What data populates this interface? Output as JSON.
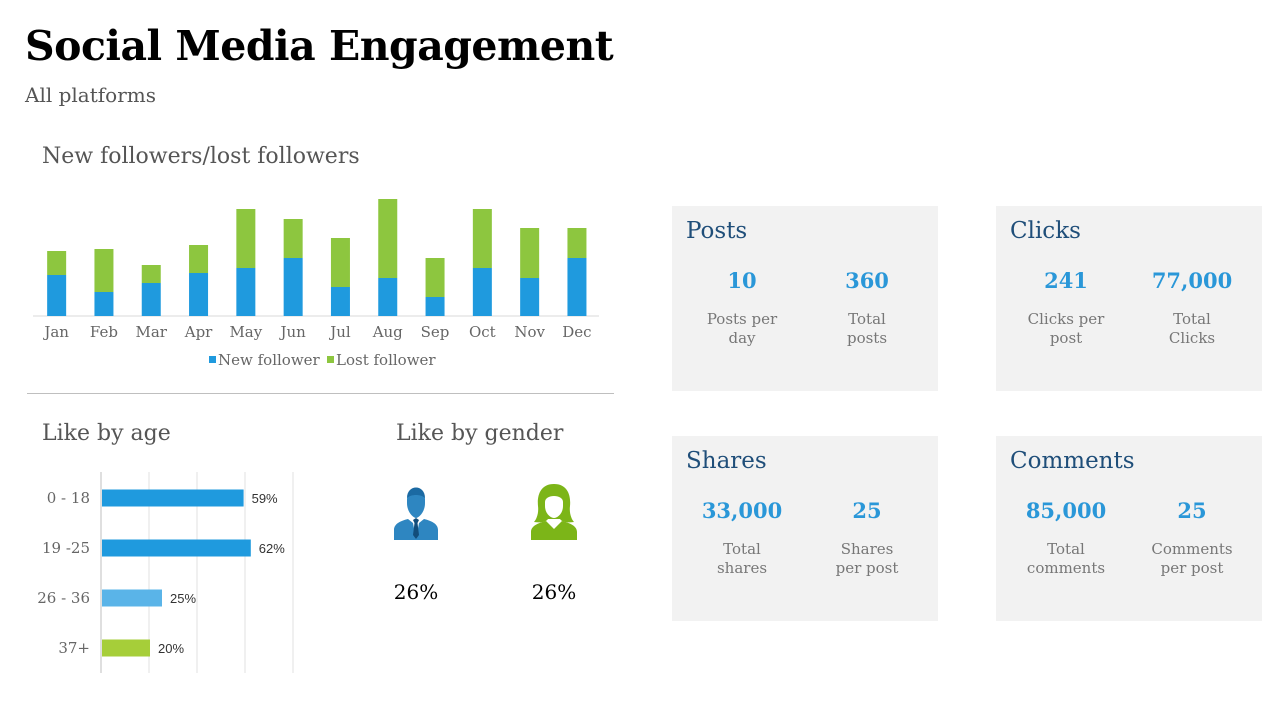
{
  "header": {
    "title": "Social Media Engagement",
    "subtitle": "All platforms"
  },
  "followers_section": {
    "title": "New followers/lost followers"
  },
  "age_section": {
    "title": "Like by age"
  },
  "gender_section": {
    "title": "Like by gender",
    "male": {
      "icon": "male-user-icon",
      "percent": "26%",
      "color": "#2e86c1"
    },
    "female": {
      "icon": "female-user-icon",
      "percent": "26%",
      "color": "#7cb518"
    }
  },
  "cards": [
    {
      "title": "Posts",
      "metrics": [
        {
          "value": "10",
          "label": "Posts per day"
        },
        {
          "value": "360",
          "label": "Total posts"
        }
      ]
    },
    {
      "title": "Clicks",
      "metrics": [
        {
          "value": "241",
          "label": "Clicks per post"
        },
        {
          "value": "77,000",
          "label": "Total Clicks"
        }
      ]
    },
    {
      "title": "Shares",
      "metrics": [
        {
          "value": "33,000",
          "label": "Total shares"
        },
        {
          "value": "25",
          "label": "Shares per post"
        }
      ]
    },
    {
      "title": "Comments",
      "metrics": [
        {
          "value": "85,000",
          "label": "Total comments"
        },
        {
          "value": "25",
          "label": "Comments per post"
        }
      ]
    }
  ],
  "chart_data": [
    {
      "type": "bar",
      "stacked": true,
      "title": "New followers/lost followers",
      "categories": [
        "Jan",
        "Feb",
        "Mar",
        "Apr",
        "May",
        "Jun",
        "Jul",
        "Aug",
        "Sep",
        "Oct",
        "Nov",
        "Dec"
      ],
      "series": [
        {
          "name": "New follower",
          "color": "#1f9ade",
          "values": [
            41,
            24,
            33,
            43,
            48,
            58,
            29,
            38,
            19,
            48,
            38,
            58
          ]
        },
        {
          "name": "Lost follower",
          "color": "#8dc63f",
          "values": [
            24,
            43,
            18,
            28,
            59,
            39,
            49,
            79,
            39,
            59,
            50,
            30
          ]
        }
      ],
      "ylim": [
        0,
        120
      ],
      "legend": "bottom",
      "grid": false
    },
    {
      "type": "bar",
      "orientation": "horizontal",
      "title": "Like by age",
      "categories": [
        "0 - 18",
        "19 -25",
        "26 - 36",
        "37+"
      ],
      "values": [
        59,
        62,
        25,
        20
      ],
      "value_labels": [
        "59%",
        "62%",
        "25%",
        "20%"
      ],
      "colors": [
        "#1f9ade",
        "#1f9ade",
        "#5ab4e8",
        "#a6ce39"
      ],
      "xlim": [
        0,
        80
      ],
      "grid": true
    }
  ]
}
